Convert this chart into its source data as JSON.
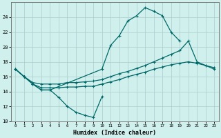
{
  "xlabel": "Humidex (Indice chaleur)",
  "bg_color": "#cff0ec",
  "grid_color": "#aacccc",
  "line_color": "#006868",
  "xlim": [
    -0.5,
    23.5
  ],
  "ylim": [
    10,
    26
  ],
  "yticks": [
    10,
    12,
    14,
    16,
    18,
    20,
    22,
    24
  ],
  "xticks": [
    0,
    1,
    2,
    3,
    4,
    5,
    6,
    7,
    8,
    9,
    10,
    11,
    12,
    13,
    14,
    15,
    16,
    17,
    18,
    19,
    20,
    21,
    22,
    23
  ],
  "line1_x": [
    0,
    1,
    2,
    3,
    4,
    5,
    6,
    7,
    8,
    9,
    10
  ],
  "line1_y": [
    17.0,
    16.0,
    15.0,
    14.2,
    14.2,
    13.2,
    12.0,
    11.2,
    10.8,
    10.5,
    13.3
  ],
  "line2_x": [
    0,
    1,
    2,
    3,
    4,
    10,
    11,
    12,
    13,
    14,
    15,
    16,
    17,
    18,
    19
  ],
  "line2_y": [
    17.0,
    16.0,
    15.0,
    14.2,
    14.2,
    17.0,
    20.2,
    21.5,
    23.5,
    24.2,
    25.3,
    24.8,
    24.2,
    22.0,
    20.8
  ],
  "line3_x": [
    0,
    1,
    2,
    3,
    4,
    5,
    6,
    7,
    8,
    9,
    10,
    11,
    12,
    13,
    14,
    15,
    16,
    17,
    18,
    19,
    20,
    21,
    22,
    23
  ],
  "line3_y": [
    17.0,
    16.0,
    15.2,
    15.0,
    15.0,
    15.0,
    15.2,
    15.2,
    15.3,
    15.4,
    15.6,
    16.0,
    16.4,
    16.7,
    17.1,
    17.5,
    18.0,
    18.5,
    19.0,
    19.5,
    20.8,
    18.0,
    17.5,
    17.0
  ],
  "line4_x": [
    0,
    1,
    2,
    3,
    4,
    5,
    6,
    7,
    8,
    9,
    10,
    11,
    12,
    13,
    14,
    15,
    16,
    17,
    18,
    19,
    20,
    21,
    22,
    23
  ],
  "line4_y": [
    17.0,
    16.0,
    15.0,
    14.5,
    14.5,
    14.5,
    14.6,
    14.6,
    14.7,
    14.7,
    15.0,
    15.3,
    15.6,
    16.0,
    16.3,
    16.6,
    17.0,
    17.3,
    17.6,
    17.8,
    18.0,
    17.8,
    17.5,
    17.2
  ]
}
